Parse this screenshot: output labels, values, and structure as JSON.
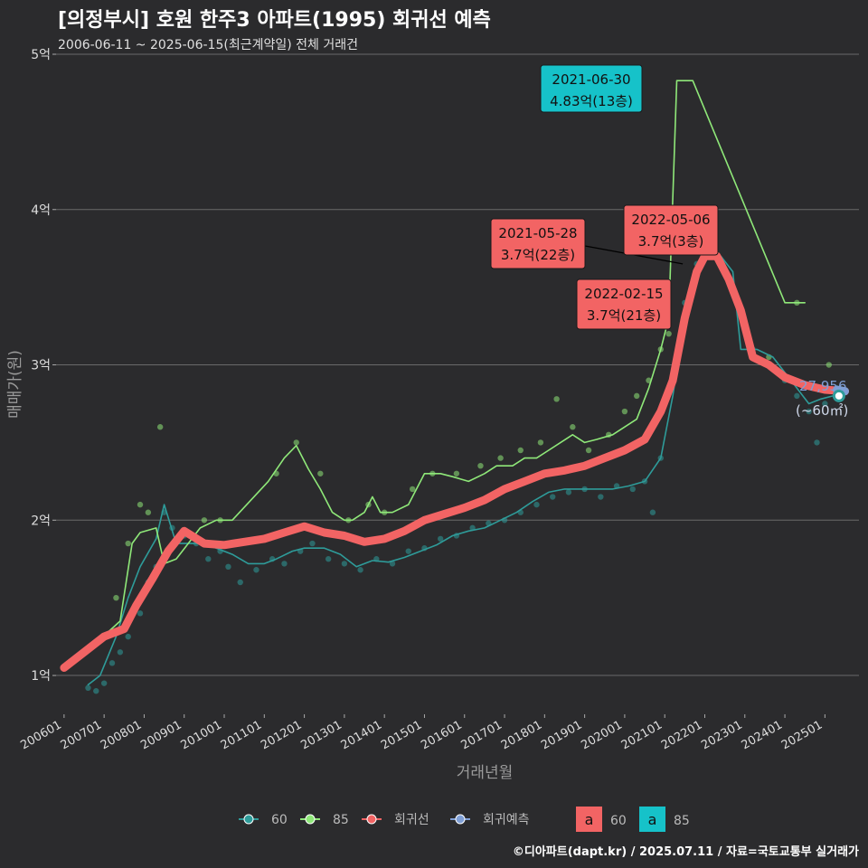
{
  "title": "[의정부시] 호원 한주3 아파트(1995) 회귀선 예측",
  "subtitle": "2006-06-11 ~ 2025-06-15(최근계약일) 전체 거래건",
  "credit": "©디아파트(dapt.kr) / 2025.07.11 / 자료=국토교통부 실거래가",
  "colors": {
    "background": "#2b2b2d",
    "grid": "#6a6a6a",
    "series_60": "#2e9c9a",
    "series_85": "#8fe879",
    "regression": "#f26464",
    "forecast": "#7f9fd6",
    "label_red": "#f26464",
    "label_teal": "#16c2c9"
  },
  "chart_data": {
    "type": "line",
    "xlabel": "거래년월",
    "ylabel": "매매가(원)",
    "x_ticks": [
      "200601",
      "200701",
      "200801",
      "200901",
      "201001",
      "201101",
      "201201",
      "201301",
      "201401",
      "201501",
      "201601",
      "201701",
      "201801",
      "201901",
      "202001",
      "202101",
      "202201",
      "202301",
      "202401",
      "202501"
    ],
    "y_ticks": [
      "1억",
      "2억",
      "3억",
      "4억",
      "5억"
    ],
    "y_tick_values": [
      1,
      2,
      3,
      4,
      5
    ],
    "ylim": [
      0.75,
      5.0
    ],
    "xlim": [
      2005.8,
      2025.85
    ],
    "grid": true,
    "legend_position": "bottom",
    "series": [
      {
        "name": "60",
        "points": [
          [
            2006.6,
            0.94
          ],
          [
            2006.9,
            1.0
          ],
          [
            2007.3,
            1.25
          ],
          [
            2007.6,
            1.5
          ],
          [
            2007.9,
            1.7
          ],
          [
            2008.3,
            1.88
          ],
          [
            2008.5,
            2.1
          ],
          [
            2008.8,
            1.85
          ],
          [
            2009.1,
            1.85
          ],
          [
            2009.4,
            1.85
          ],
          [
            2009.8,
            1.82
          ],
          [
            2010.2,
            1.78
          ],
          [
            2010.6,
            1.72
          ],
          [
            2011.0,
            1.72
          ],
          [
            2011.3,
            1.75
          ],
          [
            2011.7,
            1.8
          ],
          [
            2012.0,
            1.82
          ],
          [
            2012.5,
            1.82
          ],
          [
            2012.9,
            1.78
          ],
          [
            2013.3,
            1.7
          ],
          [
            2013.7,
            1.74
          ],
          [
            2014.1,
            1.73
          ],
          [
            2014.5,
            1.76
          ],
          [
            2014.9,
            1.8
          ],
          [
            2015.3,
            1.84
          ],
          [
            2015.7,
            1.9
          ],
          [
            2016.1,
            1.93
          ],
          [
            2016.5,
            1.95
          ],
          [
            2016.9,
            2.0
          ],
          [
            2017.3,
            2.05
          ],
          [
            2017.7,
            2.12
          ],
          [
            2018.1,
            2.18
          ],
          [
            2018.5,
            2.2
          ],
          [
            2018.9,
            2.2
          ],
          [
            2019.3,
            2.2
          ],
          [
            2019.7,
            2.2
          ],
          [
            2020.1,
            2.22
          ],
          [
            2020.5,
            2.25
          ],
          [
            2020.9,
            2.4
          ],
          [
            2021.2,
            2.8
          ],
          [
            2021.5,
            3.3
          ],
          [
            2021.8,
            3.6
          ],
          [
            2022.1,
            3.7
          ],
          [
            2022.4,
            3.7
          ],
          [
            2022.7,
            3.6
          ],
          [
            2022.9,
            3.1
          ],
          [
            2023.3,
            3.1
          ],
          [
            2023.7,
            3.05
          ],
          [
            2024.0,
            2.95
          ],
          [
            2024.3,
            2.85
          ],
          [
            2024.6,
            2.75
          ],
          [
            2024.9,
            2.78
          ],
          [
            2025.2,
            2.8
          ]
        ]
      },
      {
        "name": "85",
        "points": [
          [
            2007.1,
            1.28
          ],
          [
            2007.4,
            1.35
          ],
          [
            2007.7,
            1.85
          ],
          [
            2007.9,
            1.92
          ],
          [
            2008.3,
            1.95
          ],
          [
            2008.5,
            1.72
          ],
          [
            2008.8,
            1.75
          ],
          [
            2009.1,
            1.85
          ],
          [
            2009.4,
            1.95
          ],
          [
            2009.8,
            2.0
          ],
          [
            2010.2,
            2.0
          ],
          [
            2011.1,
            2.25
          ],
          [
            2011.5,
            2.4
          ],
          [
            2011.8,
            2.48
          ],
          [
            2012.1,
            2.33
          ],
          [
            2012.4,
            2.2
          ],
          [
            2012.7,
            2.05
          ],
          [
            2013.0,
            2.0
          ],
          [
            2013.2,
            2.0
          ],
          [
            2013.5,
            2.05
          ],
          [
            2013.7,
            2.15
          ],
          [
            2013.9,
            2.05
          ],
          [
            2014.2,
            2.05
          ],
          [
            2014.6,
            2.1
          ],
          [
            2015.0,
            2.3
          ],
          [
            2015.4,
            2.3
          ],
          [
            2015.7,
            2.28
          ],
          [
            2016.1,
            2.25
          ],
          [
            2016.5,
            2.3
          ],
          [
            2016.8,
            2.35
          ],
          [
            2017.2,
            2.35
          ],
          [
            2017.5,
            2.4
          ],
          [
            2017.8,
            2.4
          ],
          [
            2018.1,
            2.45
          ],
          [
            2018.4,
            2.5
          ],
          [
            2018.7,
            2.55
          ],
          [
            2019.0,
            2.5
          ],
          [
            2019.3,
            2.52
          ],
          [
            2019.7,
            2.55
          ],
          [
            2020.0,
            2.6
          ],
          [
            2020.3,
            2.65
          ],
          [
            2020.6,
            2.85
          ],
          [
            2020.9,
            3.1
          ],
          [
            2021.1,
            3.3
          ],
          [
            2021.3,
            4.83
          ],
          [
            2021.7,
            4.83
          ],
          [
            2024.0,
            3.4
          ],
          [
            2024.5,
            3.4
          ]
        ]
      },
      {
        "name": "회귀선",
        "points": [
          [
            2006.0,
            1.05
          ],
          [
            2006.5,
            1.15
          ],
          [
            2007.0,
            1.25
          ],
          [
            2007.5,
            1.3
          ],
          [
            2007.8,
            1.45
          ],
          [
            2008.2,
            1.62
          ],
          [
            2008.6,
            1.8
          ],
          [
            2009.0,
            1.93
          ],
          [
            2009.5,
            1.85
          ],
          [
            2010.0,
            1.84
          ],
          [
            2010.5,
            1.86
          ],
          [
            2011.0,
            1.88
          ],
          [
            2011.5,
            1.92
          ],
          [
            2012.0,
            1.96
          ],
          [
            2012.5,
            1.92
          ],
          [
            2013.0,
            1.9
          ],
          [
            2013.5,
            1.86
          ],
          [
            2014.0,
            1.88
          ],
          [
            2014.5,
            1.93
          ],
          [
            2015.0,
            2.0
          ],
          [
            2015.5,
            2.04
          ],
          [
            2016.0,
            2.08
          ],
          [
            2016.5,
            2.13
          ],
          [
            2017.0,
            2.2
          ],
          [
            2017.5,
            2.25
          ],
          [
            2018.0,
            2.3
          ],
          [
            2018.5,
            2.32
          ],
          [
            2019.0,
            2.35
          ],
          [
            2019.5,
            2.4
          ],
          [
            2020.0,
            2.45
          ],
          [
            2020.5,
            2.52
          ],
          [
            2020.9,
            2.7
          ],
          [
            2021.2,
            2.9
          ],
          [
            2021.5,
            3.3
          ],
          [
            2021.8,
            3.6
          ],
          [
            2022.0,
            3.7
          ],
          [
            2022.3,
            3.7
          ],
          [
            2022.6,
            3.55
          ],
          [
            2022.9,
            3.35
          ],
          [
            2023.2,
            3.05
          ],
          [
            2023.6,
            3.0
          ],
          [
            2024.0,
            2.92
          ],
          [
            2024.5,
            2.87
          ],
          [
            2025.0,
            2.84
          ],
          [
            2025.5,
            2.83
          ]
        ]
      },
      {
        "name": "회귀예측",
        "points": [
          [
            2025.3,
            2.84
          ],
          [
            2025.5,
            2.83
          ]
        ]
      }
    ],
    "scatter": {
      "60": [
        [
          2006.6,
          0.92
        ],
        [
          2006.8,
          0.9
        ],
        [
          2007.0,
          0.95
        ],
        [
          2007.2,
          1.08
        ],
        [
          2007.4,
          1.15
        ],
        [
          2007.6,
          1.25
        ],
        [
          2007.9,
          1.4
        ],
        [
          2008.1,
          1.6
        ],
        [
          2008.3,
          1.7
        ],
        [
          2008.5,
          2.05
        ],
        [
          2008.7,
          1.95
        ],
        [
          2009.0,
          1.9
        ],
        [
          2009.3,
          1.85
        ],
        [
          2009.6,
          1.75
        ],
        [
          2009.9,
          1.8
        ],
        [
          2010.1,
          1.7
        ],
        [
          2010.4,
          1.6
        ],
        [
          2010.8,
          1.68
        ],
        [
          2011.2,
          1.75
        ],
        [
          2011.5,
          1.72
        ],
        [
          2011.9,
          1.8
        ],
        [
          2012.2,
          1.85
        ],
        [
          2012.6,
          1.75
        ],
        [
          2013.0,
          1.72
        ],
        [
          2013.4,
          1.68
        ],
        [
          2013.8,
          1.75
        ],
        [
          2014.2,
          1.72
        ],
        [
          2014.6,
          1.8
        ],
        [
          2015.0,
          1.82
        ],
        [
          2015.4,
          1.88
        ],
        [
          2015.8,
          1.9
        ],
        [
          2016.2,
          1.95
        ],
        [
          2016.6,
          1.98
        ],
        [
          2017.0,
          2.0
        ],
        [
          2017.4,
          2.05
        ],
        [
          2017.8,
          2.1
        ],
        [
          2018.2,
          2.15
        ],
        [
          2018.6,
          2.18
        ],
        [
          2019.0,
          2.2
        ],
        [
          2019.4,
          2.15
        ],
        [
          2019.8,
          2.22
        ],
        [
          2020.2,
          2.2
        ],
        [
          2020.5,
          2.25
        ],
        [
          2020.7,
          2.05
        ],
        [
          2020.9,
          2.4
        ],
        [
          2021.2,
          2.9
        ],
        [
          2021.5,
          3.4
        ],
        [
          2021.8,
          3.65
        ],
        [
          2023.2,
          3.1
        ],
        [
          2023.6,
          3.0
        ],
        [
          2024.0,
          2.9
        ],
        [
          2024.3,
          2.8
        ],
        [
          2024.6,
          2.7
        ],
        [
          2024.8,
          2.5
        ],
        [
          2025.0,
          2.75
        ],
        [
          2025.3,
          2.85
        ]
      ],
      "85": [
        [
          2007.3,
          1.5
        ],
        [
          2007.6,
          1.85
        ],
        [
          2007.9,
          2.1
        ],
        [
          2008.1,
          2.05
        ],
        [
          2008.4,
          2.6
        ],
        [
          2009.5,
          2.0
        ],
        [
          2009.9,
          2.0
        ],
        [
          2011.3,
          2.3
        ],
        [
          2011.8,
          2.5
        ],
        [
          2012.4,
          2.3
        ],
        [
          2013.1,
          2.0
        ],
        [
          2013.6,
          2.1
        ],
        [
          2014.0,
          2.05
        ],
        [
          2014.7,
          2.2
        ],
        [
          2015.2,
          2.3
        ],
        [
          2015.8,
          2.3
        ],
        [
          2016.4,
          2.35
        ],
        [
          2016.9,
          2.4
        ],
        [
          2017.4,
          2.45
        ],
        [
          2017.9,
          2.5
        ],
        [
          2018.3,
          2.78
        ],
        [
          2018.7,
          2.6
        ],
        [
          2019.1,
          2.45
        ],
        [
          2019.6,
          2.55
        ],
        [
          2020.0,
          2.7
        ],
        [
          2020.3,
          2.8
        ],
        [
          2020.6,
          2.9
        ],
        [
          2020.9,
          3.1
        ],
        [
          2021.1,
          3.2
        ],
        [
          2023.6,
          3.05
        ],
        [
          2024.3,
          3.4
        ],
        [
          2025.1,
          3.0
        ]
      ]
    },
    "annotations": [
      {
        "date": "2021-06-30",
        "price": "4.83억(13층)",
        "style": "teal",
        "x": 2021.5,
        "y": 4.83
      },
      {
        "date": "2021-05-28",
        "price": "3.7억(22층)",
        "style": "red",
        "x": 2021.4,
        "y": 3.7
      },
      {
        "date": "2022-05-06",
        "price": "3.7억(3층)",
        "style": "red",
        "x": 2022.35,
        "y": 3.7
      },
      {
        "date": "2022-02-15",
        "price": "3.7억(21층)",
        "style": "red",
        "x": 2022.1,
        "y": 3.7
      }
    ],
    "end_label": {
      "value": "27,956",
      "unit": "(~60㎡)",
      "x": 2025.35,
      "y": 2.8
    },
    "legend": {
      "items": [
        "60",
        "85",
        "회귀선",
        "회귀예측"
      ],
      "box_items": [
        {
          "glyph": "a",
          "label": "60"
        },
        {
          "glyph": "a",
          "label": "85"
        }
      ]
    }
  }
}
